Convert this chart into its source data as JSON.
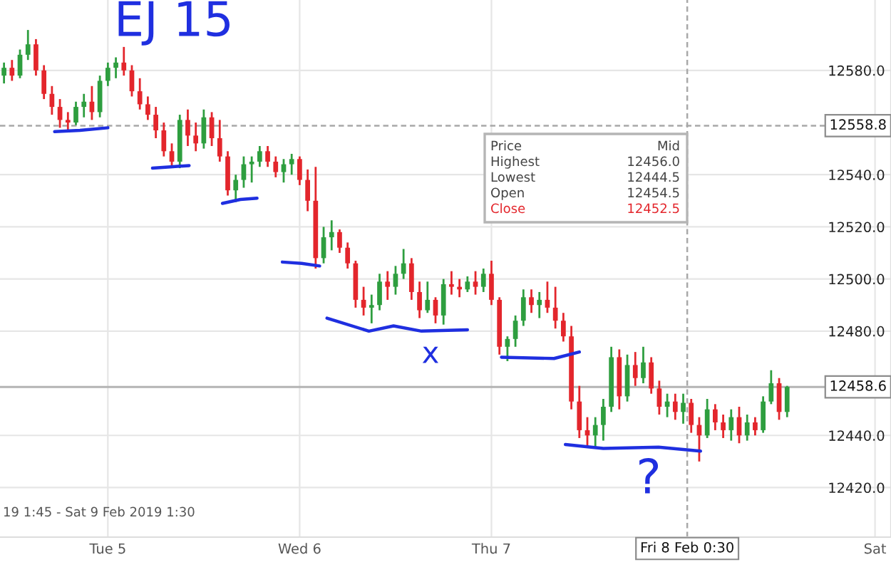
{
  "chart_data": {
    "type": "candlestick",
    "x": [
      "2019-02-04T11:00",
      "2019-02-04T12:00",
      "2019-02-04T13:00",
      "2019-02-04T14:00",
      "2019-02-04T15:00",
      "2019-02-04T16:00",
      "2019-02-04T17:00",
      "2019-02-04T18:00",
      "2019-02-04T19:00",
      "2019-02-04T20:00",
      "2019-02-04T21:00",
      "2019-02-04T22:00",
      "2019-02-04T23:00",
      "2019-02-05T00:00",
      "2019-02-05T01:00",
      "2019-02-05T02:00",
      "2019-02-05T03:00",
      "2019-02-05T04:00",
      "2019-02-05T05:00",
      "2019-02-05T06:00",
      "2019-02-05T07:00",
      "2019-02-05T08:00",
      "2019-02-05T09:00",
      "2019-02-05T10:00",
      "2019-02-05T11:00",
      "2019-02-05T12:00",
      "2019-02-05T13:00",
      "2019-02-05T14:00",
      "2019-02-05T15:00",
      "2019-02-05T16:00",
      "2019-02-05T17:00",
      "2019-02-05T18:00",
      "2019-02-05T19:00",
      "2019-02-05T20:00",
      "2019-02-05T21:00",
      "2019-02-05T22:00",
      "2019-02-05T23:00",
      "2019-02-06T00:00",
      "2019-02-06T01:00",
      "2019-02-06T02:00",
      "2019-02-06T03:00",
      "2019-02-06T04:00",
      "2019-02-06T05:00",
      "2019-02-06T06:00",
      "2019-02-06T07:00",
      "2019-02-06T08:00",
      "2019-02-06T09:00",
      "2019-02-06T10:00",
      "2019-02-06T11:00",
      "2019-02-06T12:00",
      "2019-02-06T13:00",
      "2019-02-06T14:00",
      "2019-02-06T15:00",
      "2019-02-06T16:00",
      "2019-02-06T17:00",
      "2019-02-06T18:00",
      "2019-02-06T19:00",
      "2019-02-06T20:00",
      "2019-02-06T21:00",
      "2019-02-06T22:00",
      "2019-02-06T23:00",
      "2019-02-07T00:00",
      "2019-02-07T01:00",
      "2019-02-07T02:00",
      "2019-02-07T03:00",
      "2019-02-07T04:00",
      "2019-02-07T05:00",
      "2019-02-07T06:00",
      "2019-02-07T07:00",
      "2019-02-07T08:00",
      "2019-02-07T09:00",
      "2019-02-07T10:00",
      "2019-02-07T11:00",
      "2019-02-07T12:00",
      "2019-02-07T13:00",
      "2019-02-07T14:00",
      "2019-02-07T15:00",
      "2019-02-07T16:00",
      "2019-02-07T17:00",
      "2019-02-07T18:00",
      "2019-02-07T19:00",
      "2019-02-07T20:00",
      "2019-02-07T21:00",
      "2019-02-07T22:00",
      "2019-02-07T23:00",
      "2019-02-08T00:00",
      "2019-02-08T01:00",
      "2019-02-08T02:00",
      "2019-02-08T03:00",
      "2019-02-08T04:00",
      "2019-02-08T05:00",
      "2019-02-08T06:00",
      "2019-02-08T07:00",
      "2019-02-08T08:00",
      "2019-02-08T09:00",
      "2019-02-08T10:00",
      "2019-02-08T11:00",
      "2019-02-08T12:00",
      "2019-02-08T13:00"
    ],
    "ohlc": [
      [
        12578,
        12583,
        12575,
        12581
      ],
      [
        12581,
        12584,
        12576,
        12578
      ],
      [
        12578,
        12588,
        12577,
        12586
      ],
      [
        12586,
        12595.5,
        12584,
        12590
      ],
      [
        12590,
        12592,
        12578,
        12580
      ],
      [
        12580,
        12582,
        12569,
        12571
      ],
      [
        12571,
        12574,
        12563,
        12566
      ],
      [
        12566,
        12569,
        12558,
        12561
      ],
      [
        12561,
        12564,
        12557,
        12560
      ],
      [
        12560,
        12568,
        12559,
        12566
      ],
      [
        12566,
        12571,
        12562,
        12568
      ],
      [
        12568,
        12574,
        12561,
        12564
      ],
      [
        12564,
        12578,
        12562,
        12576
      ],
      [
        12576,
        12583,
        12574,
        12581
      ],
      [
        12581,
        12585,
        12577,
        12583
      ],
      [
        12583,
        12589,
        12578,
        12580
      ],
      [
        12580,
        12582,
        12570,
        12572
      ],
      [
        12572,
        12577,
        12565,
        12567
      ],
      [
        12567,
        12570,
        12561,
        12563
      ],
      [
        12563,
        12566,
        12554,
        12557
      ],
      [
        12557,
        12560,
        12547,
        12549
      ],
      [
        12549,
        12552,
        12543,
        12545
      ],
      [
        12545,
        12563,
        12542.5,
        12561
      ],
      [
        12561,
        12565,
        12551,
        12555
      ],
      [
        12555,
        12560,
        12549,
        12552
      ],
      [
        12552,
        12565,
        12550,
        12562
      ],
      [
        12562,
        12564,
        12551,
        12554
      ],
      [
        12554,
        12561,
        12545,
        12547
      ],
      [
        12547,
        12549,
        12532,
        12534
      ],
      [
        12534,
        12540,
        12529.5,
        12538
      ],
      [
        12538,
        12547,
        12535,
        12544
      ],
      [
        12544,
        12547,
        12537,
        12545
      ],
      [
        12545,
        12551,
        12543,
        12549
      ],
      [
        12549,
        12551,
        12543,
        12545
      ],
      [
        12545,
        12547,
        12539,
        12541
      ],
      [
        12541,
        12546,
        12537,
        12544
      ],
      [
        12544,
        12548,
        12540,
        12546
      ],
      [
        12546,
        12547,
        12536,
        12538
      ],
      [
        12538,
        12542,
        12526,
        12530
      ],
      [
        12530,
        12543,
        12504,
        12508
      ],
      [
        12508,
        12520,
        12506,
        12516
      ],
      [
        12516,
        12522.5,
        12511,
        12518
      ],
      [
        12518,
        12519,
        12510,
        12512
      ],
      [
        12512,
        12514,
        12504,
        12506
      ],
      [
        12506,
        12507,
        12489,
        12492
      ],
      [
        12492,
        12497,
        12486,
        12489
      ],
      [
        12489,
        12494,
        12483,
        12490
      ],
      [
        12490,
        12502,
        12488,
        12499
      ],
      [
        12499,
        12503,
        12492,
        12497
      ],
      [
        12497,
        12505,
        12494,
        12502
      ],
      [
        12502,
        12511.5,
        12500,
        12506
      ],
      [
        12506,
        12508,
        12492,
        12495
      ],
      [
        12495,
        12499,
        12485,
        12488
      ],
      [
        12488,
        12499,
        12487,
        12492
      ],
      [
        12492,
        12493,
        12483,
        12486
      ],
      [
        12486,
        12500,
        12482.5,
        12498
      ],
      [
        12498,
        12503,
        12494,
        12497
      ],
      [
        12497,
        12500,
        12493,
        12496
      ],
      [
        12496,
        12501,
        12495,
        12499
      ],
      [
        12499,
        12503,
        12494,
        12497
      ],
      [
        12497,
        12504,
        12495,
        12502
      ],
      [
        12502,
        12507,
        12490,
        12492
      ],
      [
        12492,
        12493,
        12471,
        12474
      ],
      [
        12474,
        12478,
        12468.5,
        12477
      ],
      [
        12477,
        12486,
        12474,
        12484
      ],
      [
        12484,
        12496,
        12482,
        12493
      ],
      [
        12493,
        12496,
        12487,
        12490
      ],
      [
        12490,
        12495,
        12485,
        12492
      ],
      [
        12492,
        12499,
        12487,
        12489
      ],
      [
        12489,
        12497,
        12481,
        12484
      ],
      [
        12484,
        12487,
        12476,
        12478
      ],
      [
        12478,
        12482,
        12450,
        12453
      ],
      [
        12453,
        12459,
        12439,
        12442
      ],
      [
        12442,
        12447,
        12436,
        12440
      ],
      [
        12440,
        12447,
        12435.5,
        12444
      ],
      [
        12444,
        12454,
        12438,
        12451
      ],
      [
        12451,
        12474,
        12449,
        12470
      ],
      [
        12470,
        12473,
        12450,
        12455
      ],
      [
        12455,
        12471,
        12453,
        12467
      ],
      [
        12467,
        12472,
        12459,
        12462
      ],
      [
        12462,
        12474,
        12460,
        12468
      ],
      [
        12468,
        12470,
        12456,
        12458
      ],
      [
        12458,
        12461,
        12448,
        12451
      ],
      [
        12451,
        12456,
        12447,
        12453
      ],
      [
        12453,
        12456,
        12446,
        12449
      ],
      [
        12449,
        12456,
        12444.5,
        12452.5
      ],
      [
        12452.5,
        12454,
        12441,
        12444
      ],
      [
        12444,
        12447,
        12430,
        12440
      ],
      [
        12440,
        12454,
        12439,
        12450
      ],
      [
        12450,
        12452,
        12442,
        12445
      ],
      [
        12445,
        12448,
        12439,
        12442
      ],
      [
        12442,
        12450,
        12438,
        12447
      ],
      [
        12447,
        12451,
        12437,
        12440
      ],
      [
        12440,
        12448,
        12438,
        12445
      ],
      [
        12445,
        12447,
        12440,
        12442
      ],
      [
        12442,
        12455,
        12441,
        12453
      ],
      [
        12453,
        12465,
        12452,
        12460
      ],
      [
        12460,
        12462,
        12446,
        12449
      ],
      [
        12449,
        12459,
        12447,
        12458.6
      ]
    ],
    "colors": [
      "#2e9e3f",
      "#e3262c",
      "#2e9e3f",
      "#2e9e3f",
      "#e3262c",
      "#e3262c",
      "#e3262c",
      "#e3262c",
      "#e3262c",
      "#2e9e3f",
      "#2e9e3f",
      "#e3262c",
      "#2e9e3f",
      "#2e9e3f",
      "#2e9e3f",
      "#e3262c",
      "#e3262c",
      "#e3262c",
      "#e3262c",
      "#e3262c",
      "#e3262c",
      "#e3262c",
      "#2e9e3f",
      "#e3262c",
      "#e3262c",
      "#2e9e3f",
      "#e3262c",
      "#e3262c",
      "#e3262c",
      "#2e9e3f",
      "#2e9e3f",
      "#2e9e3f",
      "#2e9e3f",
      "#e3262c",
      "#e3262c",
      "#2e9e3f",
      "#2e9e3f",
      "#e3262c",
      "#e3262c",
      "#e3262c",
      "#2e9e3f",
      "#2e9e3f",
      "#e3262c",
      "#e3262c",
      "#e3262c",
      "#e3262c",
      "#2e9e3f",
      "#2e9e3f",
      "#e3262c",
      "#2e9e3f",
      "#2e9e3f",
      "#e3262c",
      "#e3262c",
      "#2e9e3f",
      "#e3262c",
      "#2e9e3f",
      "#e3262c",
      "#e3262c",
      "#2e9e3f",
      "#e3262c",
      "#2e9e3f",
      "#e3262c",
      "#e3262c",
      "#2e9e3f",
      "#2e9e3f",
      "#2e9e3f",
      "#e3262c",
      "#2e9e3f",
      "#e3262c",
      "#e3262c",
      "#e3262c",
      "#e3262c",
      "#e3262c",
      "#e3262c",
      "#2e9e3f",
      "#2e9e3f",
      "#2e9e3f",
      "#e3262c",
      "#2e9e3f",
      "#e3262c",
      "#2e9e3f",
      "#e3262c",
      "#e3262c",
      "#2e9e3f",
      "#e3262c",
      "#2e9e3f",
      "#e3262c",
      "#e3262c",
      "#2e9e3f",
      "#e3262c",
      "#e3262c",
      "#2e9e3f",
      "#e3262c",
      "#2e9e3f",
      "#e3262c",
      "#2e9e3f",
      "#2e9e3f",
      "#e3262c",
      "#2e9e3f"
    ],
    "series": [
      {
        "type": "line",
        "color": "#1f2fe0",
        "x": [
          "2019-02-04T17:20",
          "2019-02-04T20:30",
          "2019-02-05T00:00"
        ],
        "values": [
          12556.5,
          12557,
          12558
        ]
      },
      {
        "type": "line",
        "color": "#1f2fe0",
        "x": [
          "2019-02-05T05:35",
          "2019-02-05T07:50",
          "2019-02-05T10:10"
        ],
        "values": [
          12542.5,
          12543,
          12543.5
        ]
      },
      {
        "type": "line",
        "color": "#1f2fe0",
        "x": [
          "2019-02-05T14:20",
          "2019-02-05T16:35",
          "2019-02-05T18:40"
        ],
        "values": [
          12529,
          12530.5,
          12531
        ]
      },
      {
        "type": "line",
        "color": "#1f2fe0",
        "x": [
          "2019-02-05T21:50",
          "2019-02-06T00:15",
          "2019-02-06T02:30"
        ],
        "values": [
          12506.5,
          12506,
          12505
        ]
      },
      {
        "type": "line",
        "color": "#1f2fe0",
        "x": [
          "2019-02-06T03:25",
          "2019-02-06T08:40",
          "2019-02-06T11:45",
          "2019-02-06T15:15",
          "2019-02-06T21:00"
        ],
        "values": [
          12485,
          12480,
          12482,
          12480,
          12480.5
        ]
      },
      {
        "type": "line",
        "color": "#1f2fe0",
        "x": [
          "2019-02-07T01:15",
          "2019-02-07T07:50",
          "2019-02-07T11:00"
        ],
        "values": [
          12470,
          12469.5,
          12472
        ]
      },
      {
        "type": "line",
        "color": "#1f2fe0",
        "x": [
          "2019-02-07T09:15",
          "2019-02-07T14:00",
          "2019-02-07T20:55",
          "2019-02-08T02:10"
        ],
        "values": [
          12436.5,
          12435,
          12435.5,
          12434
        ]
      }
    ],
    "xlim": [
      "2019-02-04T10:30",
      "2019-02-09T02:00"
    ],
    "xticks": [
      {
        "value": "2019-02-05",
        "label": "Tue 5"
      },
      {
        "value": "2019-02-06",
        "label": "Wed 6"
      },
      {
        "value": "2019-02-07",
        "label": "Thu 7"
      },
      {
        "value": "2019-02-09",
        "label": "Sat"
      }
    ],
    "ylim": [
      12401,
      12607
    ],
    "yticks": [
      {
        "value": 12420,
        "label": "12420.0"
      },
      {
        "value": 12440,
        "label": "12440.0"
      },
      {
        "value": 12480,
        "label": "12480.0"
      },
      {
        "value": 12500,
        "label": "12500.0"
      },
      {
        "value": 12520,
        "label": "12520.0"
      },
      {
        "value": 12540,
        "label": "12540.0"
      },
      {
        "value": 12580,
        "label": "12580.0"
      }
    ],
    "grid": true,
    "ref_lines": [
      {
        "axis": "y",
        "value": 12558.8,
        "label": "12558.8",
        "color": "#a8a8a8",
        "line_style": "dashed"
      },
      {
        "axis": "y",
        "value": 12458.6,
        "label": "12458.6",
        "color": "#b4b4b4",
        "line_style": "solid"
      },
      {
        "axis": "x",
        "value": "2019-02-08T00:30",
        "label": "Fri 8 Feb 0:30",
        "color": "#a8a8a8",
        "line_style": "dashed"
      }
    ],
    "annotations": [
      "19 1:45 - Sat 9 Feb 2019 1:30",
      "EJ 15",
      "x",
      "?",
      "Price",
      "Mid",
      "Highest",
      "12456.0",
      "Lowest",
      "12444.5",
      "Open",
      "12454.5",
      "Close",
      "12452.5"
    ]
  }
}
